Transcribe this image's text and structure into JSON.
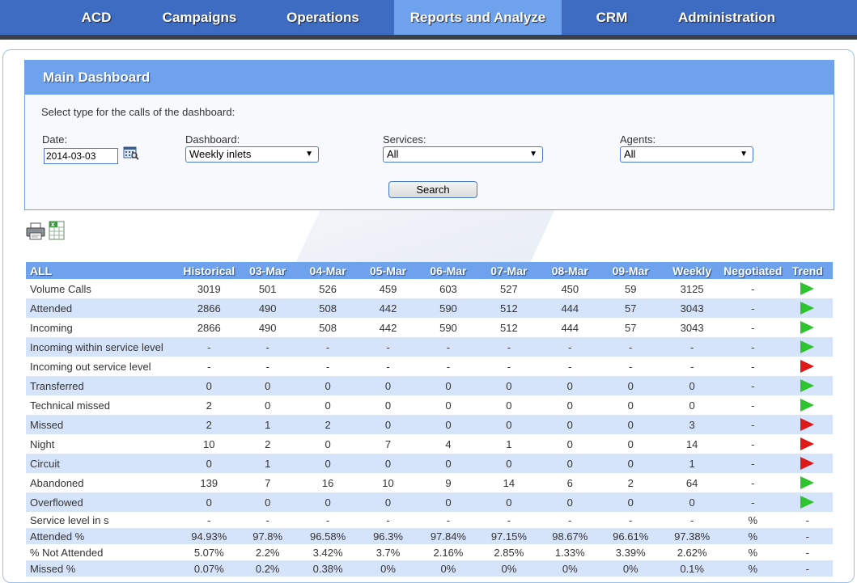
{
  "nav": {
    "items": [
      {
        "label": "ACD"
      },
      {
        "label": "Campaigns"
      },
      {
        "label": "Operations"
      },
      {
        "label": "Reports and Analyze"
      },
      {
        "label": "CRM"
      },
      {
        "label": "Administration"
      }
    ],
    "active": "Reports and Analyze"
  },
  "dashboard": {
    "title": "Main Dashboard",
    "intro": "Select type for the calls of the dashboard:",
    "date_label": "Date:",
    "date_value": "2014-03-03",
    "dashboard_label": "Dashboard:",
    "dashboard_value": "Weekly inlets",
    "services_label": "Services:",
    "services_value": "All",
    "agents_label": "Agents:",
    "agents_value": "All",
    "search_label": "Search",
    "dropdown_arrow": "▼"
  },
  "colors": {
    "nav_bg": "#3d6cc2",
    "accent": "#6fa2ec",
    "row_alt": "#d5e4fa",
    "trend_up": "#2ec42e",
    "trend_down": "#e01818"
  },
  "table": {
    "headers": [
      "ALL",
      "Historical",
      "03-Mar",
      "04-Mar",
      "05-Mar",
      "06-Mar",
      "07-Mar",
      "08-Mar",
      "09-Mar",
      "Weekly",
      "Negotiated",
      "Trend"
    ],
    "rows": [
      {
        "label": "Volume Calls",
        "cells": [
          "3019",
          "501",
          "526",
          "459",
          "603",
          "527",
          "450",
          "59",
          "3125",
          "-"
        ],
        "trend": "green"
      },
      {
        "label": "Attended",
        "cells": [
          "2866",
          "490",
          "508",
          "442",
          "590",
          "512",
          "444",
          "57",
          "3043",
          "-"
        ],
        "trend": "green"
      },
      {
        "label": "Incoming",
        "cells": [
          "2866",
          "490",
          "508",
          "442",
          "590",
          "512",
          "444",
          "57",
          "3043",
          "-"
        ],
        "trend": "green"
      },
      {
        "label": "Incoming within service level",
        "cells": [
          "-",
          "-",
          "-",
          "-",
          "-",
          "-",
          "-",
          "-",
          "-",
          "-"
        ],
        "trend": "green"
      },
      {
        "label": "Incoming out service level",
        "cells": [
          "-",
          "-",
          "-",
          "-",
          "-",
          "-",
          "-",
          "-",
          "-",
          "-"
        ],
        "trend": "red"
      },
      {
        "label": "Transferred",
        "cells": [
          "0",
          "0",
          "0",
          "0",
          "0",
          "0",
          "0",
          "0",
          "0",
          "-"
        ],
        "trend": "green"
      },
      {
        "label": "Technical missed",
        "cells": [
          "2",
          "0",
          "0",
          "0",
          "0",
          "0",
          "0",
          "0",
          "0",
          "-"
        ],
        "trend": "green"
      },
      {
        "label": "Missed",
        "cells": [
          "2",
          "1",
          "2",
          "0",
          "0",
          "0",
          "0",
          "0",
          "3",
          "-"
        ],
        "trend": "red"
      },
      {
        "label": "Night",
        "cells": [
          "10",
          "2",
          "0",
          "7",
          "4",
          "1",
          "0",
          "0",
          "14",
          "-"
        ],
        "trend": "red"
      },
      {
        "label": "Circuit",
        "cells": [
          "0",
          "1",
          "0",
          "0",
          "0",
          "0",
          "0",
          "0",
          "1",
          "-"
        ],
        "trend": "red"
      },
      {
        "label": "Abandoned",
        "cells": [
          "139",
          "7",
          "16",
          "10",
          "9",
          "14",
          "6",
          "2",
          "64",
          "-"
        ],
        "trend": "green"
      },
      {
        "label": "Overflowed",
        "cells": [
          "0",
          "0",
          "0",
          "0",
          "0",
          "0",
          "0",
          "0",
          "0",
          "-"
        ],
        "trend": "green"
      },
      {
        "label": "Service level in s",
        "cells": [
          "-",
          "-",
          "-",
          "-",
          "-",
          "-",
          "-",
          "-",
          "-",
          "%"
        ],
        "trend_text": "-"
      },
      {
        "label": "Attended %",
        "cells": [
          "94.93%",
          "97.8%",
          "96.58%",
          "96.3%",
          "97.84%",
          "97.15%",
          "98.67%",
          "96.61%",
          "97.38%",
          "%"
        ],
        "trend_text": "-"
      },
      {
        "label": "% Not Attended",
        "cells": [
          "5.07%",
          "2.2%",
          "3.42%",
          "3.7%",
          "2.16%",
          "2.85%",
          "1.33%",
          "3.39%",
          "2.62%",
          "%"
        ],
        "trend_text": "-"
      },
      {
        "label": "Missed %",
        "cells": [
          "0.07%",
          "0.2%",
          "0.38%",
          "0%",
          "0%",
          "0%",
          "0%",
          "0%",
          "0.1%",
          "%"
        ],
        "trend_text": "-"
      }
    ]
  }
}
